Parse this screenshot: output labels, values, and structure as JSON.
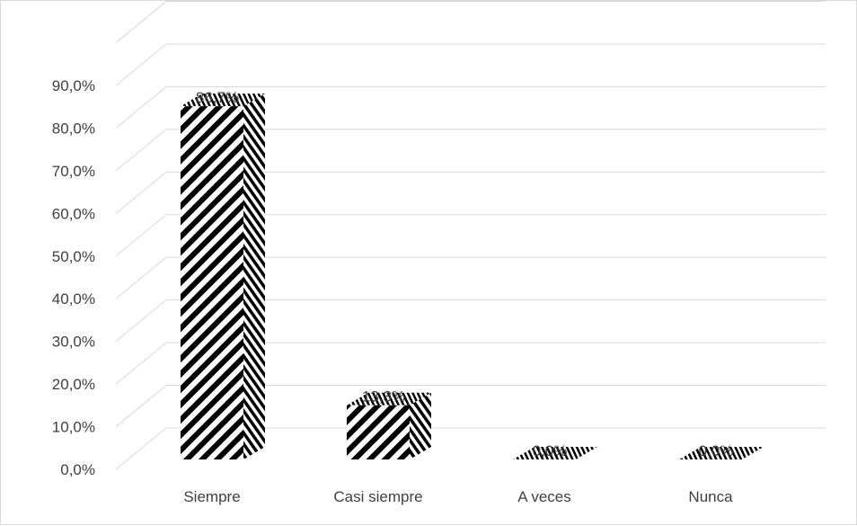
{
  "chart_data": {
    "type": "bar",
    "style": "3d-column",
    "categories": [
      "Siempre",
      "Casi siempre",
      "A veces",
      "Nunca"
    ],
    "values": [
      86.7,
      13.3,
      0.0,
      0.0
    ],
    "data_labels": [
      "86,7%",
      "13,3%",
      "0,0%",
      "0,0%"
    ],
    "y_ticks": [
      "0,0%",
      "10,0%",
      "20,0%",
      "30,0%",
      "40,0%",
      "50,0%",
      "60,0%",
      "70,0%",
      "80,0%",
      "90,0%"
    ],
    "ylim": [
      0,
      90
    ],
    "title": "",
    "xlabel": "",
    "ylabel": "",
    "grid": true,
    "legend": "none",
    "colors": {
      "bar_front_stripe": "#000000",
      "bar_side_stripe": "#000000",
      "bar_top_stripe": "#000000",
      "gridline": "#d9d9d9",
      "text": "#404040"
    }
  }
}
